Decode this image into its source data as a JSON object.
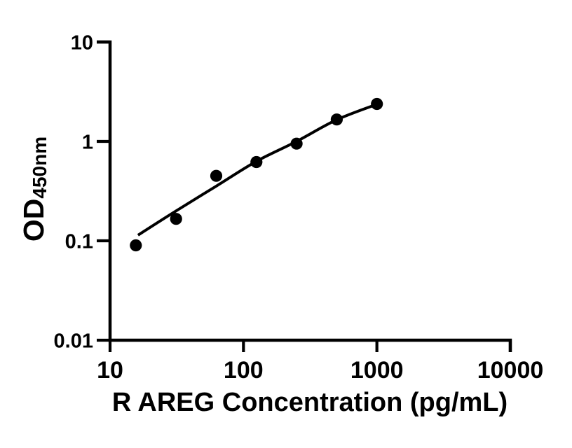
{
  "figure": {
    "background_color": "#ffffff",
    "ink_color": "#000000"
  },
  "chart_data": {
    "type": "scatter",
    "description": "ELISA standard curve with fitted line through filled black circular markers on log-log axes",
    "title": "",
    "xlabel": "R AREG Concentration (pg/mL)",
    "ylabel": "OD",
    "ylabel_subscript": "450nm",
    "x_scale": "log10",
    "y_scale": "log10",
    "xlim": [
      10,
      10000
    ],
    "ylim": [
      0.01,
      10
    ],
    "grid": false,
    "legend": null,
    "x_ticks": [
      {
        "value": 10,
        "label": "10"
      },
      {
        "value": 100,
        "label": "100"
      },
      {
        "value": 1000,
        "label": "1000"
      },
      {
        "value": 10000,
        "label": "10000"
      }
    ],
    "y_ticks": [
      {
        "value": 10,
        "label": "10"
      },
      {
        "value": 1,
        "label": "1"
      },
      {
        "value": 0.1,
        "label": "0.1"
      },
      {
        "value": 0.01,
        "label": "0.01"
      }
    ],
    "marker": {
      "shape": "filled-circle",
      "color": "#000000",
      "radius_px": 8.6
    },
    "points": [
      {
        "x": 15.6,
        "y": 0.09
      },
      {
        "x": 31.25,
        "y": 0.166
      },
      {
        "x": 62.5,
        "y": 0.45
      },
      {
        "x": 125,
        "y": 0.62
      },
      {
        "x": 250,
        "y": 0.95
      },
      {
        "x": 500,
        "y": 1.66
      },
      {
        "x": 1000,
        "y": 2.38
      }
    ],
    "fit_curve": {
      "color": "#000000",
      "points": [
        {
          "x": 16.2,
          "y": 0.114
        },
        {
          "x": 31.25,
          "y": 0.2
        },
        {
          "x": 62.5,
          "y": 0.355
        },
        {
          "x": 125,
          "y": 0.63
        },
        {
          "x": 250,
          "y": 1.0
        },
        {
          "x": 500,
          "y": 1.65
        },
        {
          "x": 1000,
          "y": 2.36
        }
      ]
    }
  }
}
